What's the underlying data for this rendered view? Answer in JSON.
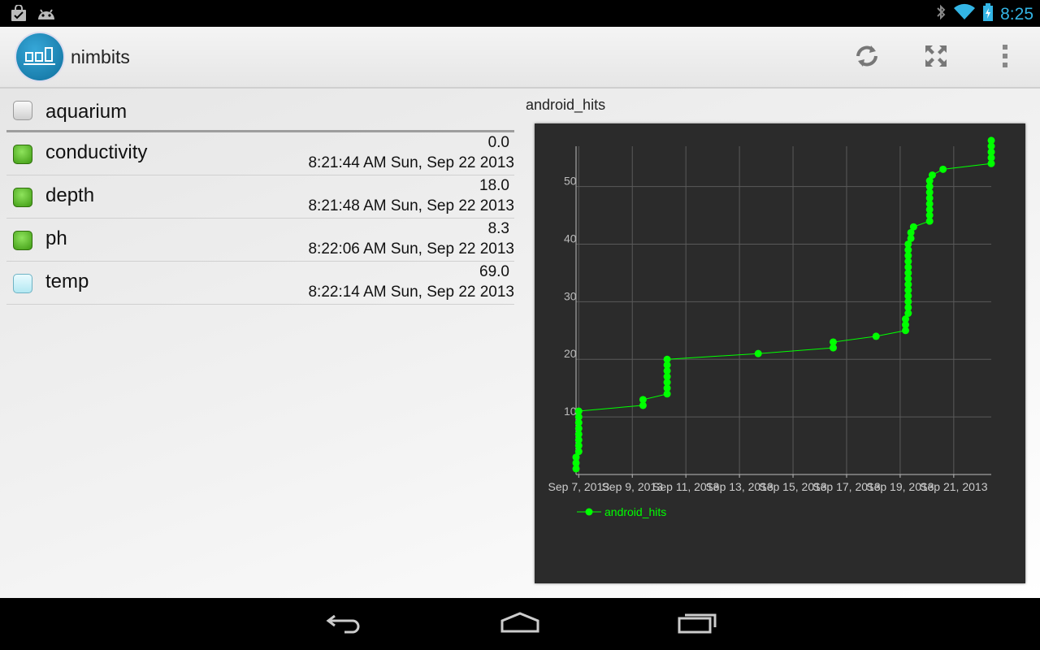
{
  "status_bar": {
    "time": "8:25",
    "left_icons": [
      "shopping-bag-icon",
      "android-icon"
    ],
    "right_icons": [
      "bluetooth-icon",
      "wifi-icon",
      "battery-icon"
    ]
  },
  "action_bar": {
    "title": "nimbits",
    "actions": [
      "refresh-icon",
      "fullscreen-icon",
      "overflow-menu-icon"
    ]
  },
  "list": {
    "group": {
      "label": "aquarium"
    },
    "items": [
      {
        "label": "conductivity",
        "value": "0.0",
        "time": "8:21:44 AM  Sun, Sep 22 2013",
        "status": "green"
      },
      {
        "label": "depth",
        "value": "18.0",
        "time": "8:21:48 AM  Sun, Sep 22 2013",
        "status": "green"
      },
      {
        "label": "ph",
        "value": "8.3",
        "time": "8:22:06 AM  Sun, Sep 22 2013",
        "status": "green"
      },
      {
        "label": "temp",
        "value": "69.0",
        "time": "8:22:14 AM  Sun, Sep 22 2013",
        "status": "cyan"
      }
    ]
  },
  "chart_title": "android_hits",
  "chart_data": {
    "type": "line",
    "title": "",
    "xlabel": "",
    "ylabel": "",
    "x_ticks": [
      "Sep 7, 2013",
      "Sep 9, 2013",
      "Sep 11, 2013",
      "Sep 13, 2013",
      "Sep 15, 2013",
      "Sep 17, 2013",
      "Sep 19, 2013",
      "Sep 21, 2013"
    ],
    "y_ticks": [
      10,
      20,
      30,
      40,
      50
    ],
    "xlim": [
      6.9,
      22.4
    ],
    "ylim": [
      0,
      57
    ],
    "grid": true,
    "legend": "bottom-left",
    "series": [
      {
        "name": "android_hits",
        "color": "#00ff00",
        "points": [
          [
            6.9,
            1
          ],
          [
            6.9,
            2
          ],
          [
            6.9,
            3
          ],
          [
            7.0,
            4
          ],
          [
            7.0,
            5
          ],
          [
            7.0,
            6
          ],
          [
            7.0,
            7
          ],
          [
            7.0,
            8
          ],
          [
            7.0,
            9
          ],
          [
            7.0,
            10
          ],
          [
            7.0,
            11
          ],
          [
            9.4,
            12
          ],
          [
            9.4,
            13
          ],
          [
            10.3,
            14
          ],
          [
            10.3,
            15
          ],
          [
            10.3,
            16
          ],
          [
            10.3,
            17
          ],
          [
            10.3,
            18
          ],
          [
            10.3,
            19
          ],
          [
            10.3,
            20
          ],
          [
            13.7,
            21
          ],
          [
            16.5,
            22
          ],
          [
            16.5,
            23
          ],
          [
            18.1,
            24
          ],
          [
            19.2,
            25
          ],
          [
            19.2,
            26
          ],
          [
            19.2,
            27
          ],
          [
            19.3,
            28
          ],
          [
            19.3,
            29
          ],
          [
            19.3,
            30
          ],
          [
            19.3,
            31
          ],
          [
            19.3,
            32
          ],
          [
            19.3,
            33
          ],
          [
            19.3,
            34
          ],
          [
            19.3,
            35
          ],
          [
            19.3,
            36
          ],
          [
            19.3,
            37
          ],
          [
            19.3,
            38
          ],
          [
            19.3,
            39
          ],
          [
            19.3,
            40
          ],
          [
            19.4,
            41
          ],
          [
            19.4,
            42
          ],
          [
            19.5,
            43
          ],
          [
            20.1,
            44
          ],
          [
            20.1,
            45
          ],
          [
            20.1,
            46
          ],
          [
            20.1,
            47
          ],
          [
            20.1,
            48
          ],
          [
            20.1,
            49
          ],
          [
            20.1,
            50
          ],
          [
            20.1,
            51
          ],
          [
            20.2,
            52
          ],
          [
            20.6,
            53
          ],
          [
            22.4,
            54
          ],
          [
            22.4,
            55
          ],
          [
            22.4,
            56
          ],
          [
            22.4,
            57
          ],
          [
            22.4,
            58
          ]
        ]
      }
    ]
  }
}
